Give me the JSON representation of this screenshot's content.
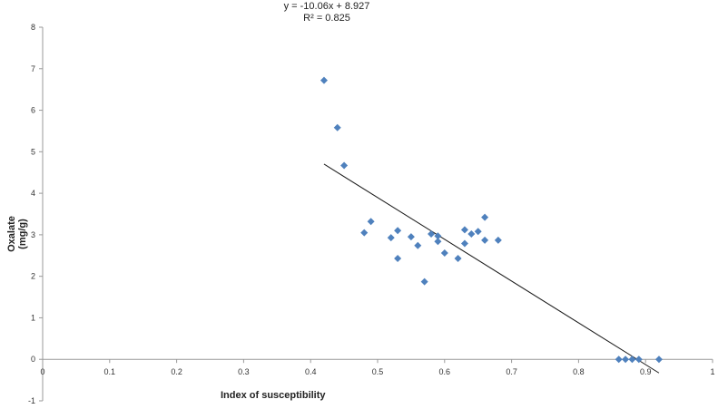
{
  "chart_data": {
    "type": "scatter",
    "xlabel": "Index of susceptibility",
    "ylabel": "Oxalate (mg/g)",
    "xlim": [
      0,
      1
    ],
    "ylim": [
      -1,
      8
    ],
    "x_ticks": [
      "0",
      "0.1",
      "0.2",
      "0.3",
      "0.4",
      "0.5",
      "0.6",
      "0.7",
      "0.8",
      "0.9",
      "1"
    ],
    "y_ticks": [
      "-1",
      "0",
      "1",
      "2",
      "3",
      "4",
      "5",
      "6",
      "7",
      "8"
    ],
    "grid": false,
    "marker_color": "#4f81bd",
    "trendline": {
      "equation": "y = -10.06x + 8.927",
      "r2_label": "R² = 0.825",
      "slope": -10.06,
      "intercept": 8.927,
      "x_range": [
        0.42,
        0.92
      ]
    },
    "points": [
      {
        "x": 0.42,
        "y": 6.72
      },
      {
        "x": 0.44,
        "y": 5.58
      },
      {
        "x": 0.45,
        "y": 4.67
      },
      {
        "x": 0.48,
        "y": 3.05
      },
      {
        "x": 0.49,
        "y": 3.32
      },
      {
        "x": 0.52,
        "y": 2.93
      },
      {
        "x": 0.53,
        "y": 3.1
      },
      {
        "x": 0.53,
        "y": 2.43
      },
      {
        "x": 0.55,
        "y": 2.95
      },
      {
        "x": 0.56,
        "y": 2.74
      },
      {
        "x": 0.57,
        "y": 1.87
      },
      {
        "x": 0.58,
        "y": 3.02
      },
      {
        "x": 0.59,
        "y": 2.97
      },
      {
        "x": 0.59,
        "y": 2.84
      },
      {
        "x": 0.6,
        "y": 2.56
      },
      {
        "x": 0.62,
        "y": 2.43
      },
      {
        "x": 0.63,
        "y": 3.12
      },
      {
        "x": 0.63,
        "y": 2.79
      },
      {
        "x": 0.64,
        "y": 3.02
      },
      {
        "x": 0.65,
        "y": 3.08
      },
      {
        "x": 0.66,
        "y": 3.42
      },
      {
        "x": 0.66,
        "y": 2.87
      },
      {
        "x": 0.68,
        "y": 2.87
      },
      {
        "x": 0.86,
        "y": 0.0
      },
      {
        "x": 0.87,
        "y": 0.0
      },
      {
        "x": 0.88,
        "y": 0.0
      },
      {
        "x": 0.89,
        "y": 0.0
      },
      {
        "x": 0.92,
        "y": 0.0
      }
    ]
  }
}
